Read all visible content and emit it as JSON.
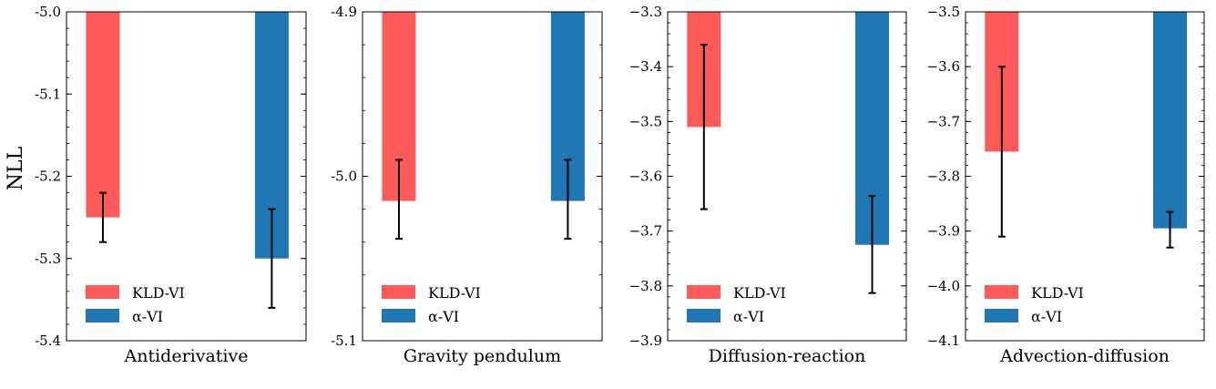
{
  "figure": {
    "ylabel": "NLL",
    "legend_labels": [
      "KLD-VI",
      "α-VI"
    ]
  },
  "chart_data": [
    {
      "type": "bar",
      "xlabel": "Antiderivative",
      "ylabel": "NLL",
      "categories": [
        "KLD-VI",
        "α-VI"
      ],
      "series": [
        {
          "name": "KLD-VI",
          "color": "#ff5a5a",
          "value": -5.25,
          "err_low": -5.28,
          "err_high": -5.22
        },
        {
          "name": "α-VI",
          "color": "#1f77b4",
          "value": -5.3,
          "err_low": -5.36,
          "err_high": -5.24
        }
      ],
      "ylim": [
        -5.4,
        -5.0
      ],
      "yticks": [
        -5.0,
        -5.1,
        -5.2,
        -5.3,
        -5.4
      ],
      "ytick_labels": [
        "-5.0",
        "-5.1",
        "-5.2",
        "-5.3",
        "-5.4"
      ],
      "legend": "lower-left",
      "grid": false
    },
    {
      "type": "bar",
      "xlabel": "Gravity pendulum",
      "categories": [
        "KLD-VI",
        "α-VI"
      ],
      "series": [
        {
          "name": "KLD-VI",
          "color": "#ff5a5a",
          "value": -5.015,
          "err_low": -5.038,
          "err_high": -4.99
        },
        {
          "name": "α-VI",
          "color": "#1f77b4",
          "value": -5.015,
          "err_low": -5.038,
          "err_high": -4.99
        }
      ],
      "ylim": [
        -5.1,
        -4.9
      ],
      "yticks": [
        -4.9,
        -5.0,
        -5.1
      ],
      "ytick_labels": [
        "-4.9",
        "-5.0",
        "-5.1"
      ],
      "legend": "lower-left",
      "grid": false
    },
    {
      "type": "bar",
      "xlabel": "Diffusion-reaction",
      "categories": [
        "KLD-VI",
        "α-VI"
      ],
      "series": [
        {
          "name": "KLD-VI",
          "color": "#ff5a5a",
          "value": -3.51,
          "err_low": -3.66,
          "err_high": -3.36
        },
        {
          "name": "α-VI",
          "color": "#1f77b4",
          "value": -3.725,
          "err_low": -3.813,
          "err_high": -3.636
        }
      ],
      "ylim": [
        -3.9,
        -3.3
      ],
      "yticks": [
        -3.3,
        -3.4,
        -3.5,
        -3.6,
        -3.7,
        -3.8,
        -3.9
      ],
      "ytick_labels": [
        "−3.3",
        "−3.4",
        "−3.5",
        "−3.6",
        "−3.7",
        "−3.8",
        "−3.9"
      ],
      "legend": "lower-left",
      "grid": false
    },
    {
      "type": "bar",
      "xlabel": "Advection-diffusion",
      "categories": [
        "KLD-VI",
        "α-VI"
      ],
      "series": [
        {
          "name": "KLD-VI",
          "color": "#ff5a5a",
          "value": -3.755,
          "err_low": -3.91,
          "err_high": -3.6
        },
        {
          "name": "α-VI",
          "color": "#1f77b4",
          "value": -3.895,
          "err_low": -3.93,
          "err_high": -3.865
        }
      ],
      "ylim": [
        -4.1,
        -3.5
      ],
      "yticks": [
        -3.5,
        -3.6,
        -3.7,
        -3.8,
        -3.9,
        -4.0,
        -4.1
      ],
      "ytick_labels": [
        "−3.5",
        "−3.6",
        "−3.7",
        "−3.8",
        "−3.9",
        "−4.0",
        "−4.1"
      ],
      "legend": "lower-left",
      "grid": false
    }
  ]
}
